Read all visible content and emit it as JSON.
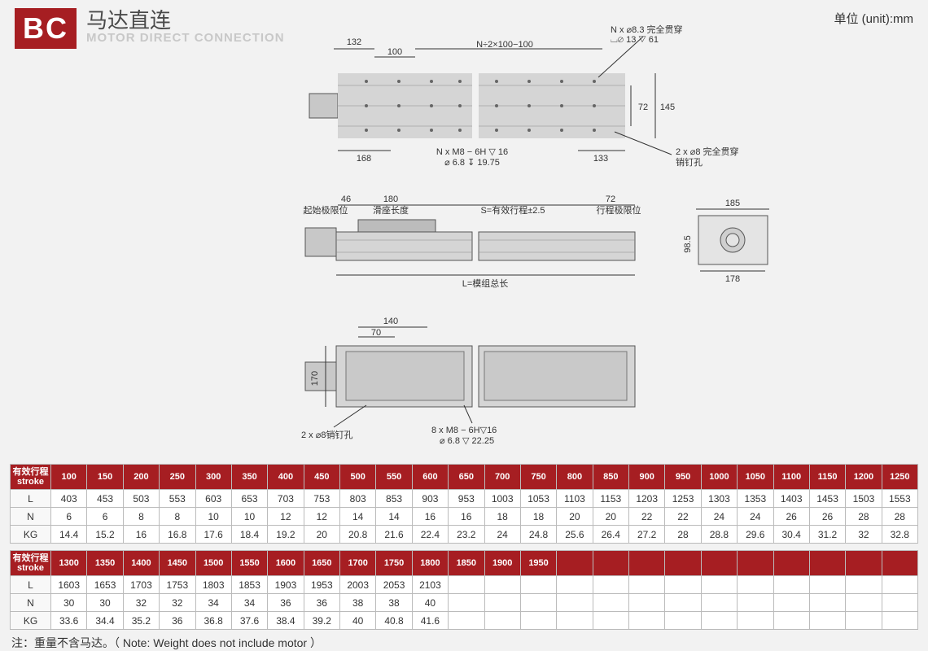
{
  "badge": "BC",
  "title_cn": "马达直连",
  "title_en": "MOTOR DIRECT CONNECTION",
  "unit_label": "单位 (unit):mm",
  "colors": {
    "brand_red": "#a61e22",
    "background": "#f2f2f2",
    "body_fill": "#d5d5d5",
    "line": "#333333",
    "grid": "#bbbbbb",
    "subtitle_grey": "#c8c8c8"
  },
  "fonts": {
    "title_cn_pt": 26,
    "title_en_pt": 15,
    "table_cell_pt": 12,
    "dim_pt": 11,
    "badge_pt": 36
  },
  "top_view": {
    "dims": {
      "d132": "132",
      "d100": "100",
      "formula": "N÷2×100−100",
      "d168": "168",
      "d133": "133",
      "d72": "72",
      "d145": "145",
      "note_top": "N x ⌀8.3 完全贯穿",
      "note_top2": "⌴⌀ 13 ▽ 61",
      "note_bottom": "N x M8 − 6H ▽ 16",
      "note_bottom2": "⌀ 6.8 ↧ 19.75",
      "note_right": "2 x ⌀8 完全贯穿",
      "note_right2": "销钉孔"
    }
  },
  "side_view": {
    "dims": {
      "d46": "46",
      "d180": "180",
      "d72": "72",
      "start_label": "起始极限位",
      "slide_label": "滑座长度",
      "stroke_label": "S=有效行程±2.5",
      "end_label": "行程极限位",
      "length_label": "L=模组总长"
    }
  },
  "end_view": {
    "dims": {
      "d185": "185",
      "d98_5": "98.5",
      "d178": "178"
    }
  },
  "bottom_view": {
    "dims": {
      "d140": "140",
      "d70": "70",
      "d170": "170",
      "note_left": "2 x ⌀8销钉孔",
      "note_right": "8 x M8 − 6H▽16",
      "note_right2": "⌀ 6.8 ▽ 22.25"
    }
  },
  "table1": {
    "row_header_label": "有效行程\nstroke",
    "strokes": [
      "100",
      "150",
      "200",
      "250",
      "300",
      "350",
      "400",
      "450",
      "500",
      "550",
      "600",
      "650",
      "700",
      "750",
      "800",
      "850",
      "900",
      "950",
      "1000",
      "1050",
      "1100",
      "1150",
      "1200",
      "1250"
    ],
    "rows": [
      {
        "label": "L",
        "values": [
          "403",
          "453",
          "503",
          "553",
          "603",
          "653",
          "703",
          "753",
          "803",
          "853",
          "903",
          "953",
          "1003",
          "1053",
          "1103",
          "1153",
          "1203",
          "1253",
          "1303",
          "1353",
          "1403",
          "1453",
          "1503",
          "1553"
        ]
      },
      {
        "label": "N",
        "values": [
          "6",
          "6",
          "8",
          "8",
          "10",
          "10",
          "12",
          "12",
          "14",
          "14",
          "16",
          "16",
          "18",
          "18",
          "20",
          "20",
          "22",
          "22",
          "24",
          "24",
          "26",
          "26",
          "28",
          "28"
        ]
      },
      {
        "label": "KG",
        "values": [
          "14.4",
          "15.2",
          "16",
          "16.8",
          "17.6",
          "18.4",
          "19.2",
          "20",
          "20.8",
          "21.6",
          "22.4",
          "23.2",
          "24",
          "24.8",
          "25.6",
          "26.4",
          "27.2",
          "28",
          "28.8",
          "29.6",
          "30.4",
          "31.2",
          "32",
          "32.8"
        ]
      }
    ]
  },
  "table2": {
    "row_header_label": "有效行程\nstroke",
    "strokes": [
      "1300",
      "1350",
      "1400",
      "1450",
      "1500",
      "1550",
      "1600",
      "1650",
      "1700",
      "1750",
      "1800",
      "1850",
      "1900",
      "1950",
      "",
      "",
      "",
      "",
      "",
      "",
      "",
      "",
      "",
      ""
    ],
    "rows": [
      {
        "label": "L",
        "values": [
          "1603",
          "1653",
          "1703",
          "1753",
          "1803",
          "1853",
          "1903",
          "1953",
          "2003",
          "2053",
          "2103",
          "",
          "",
          "",
          "",
          "",
          "",
          "",
          "",
          "",
          "",
          "",
          "",
          ""
        ]
      },
      {
        "label": "N",
        "values": [
          "30",
          "30",
          "32",
          "32",
          "34",
          "34",
          "36",
          "36",
          "38",
          "38",
          "40",
          "",
          "",
          "",
          "",
          "",
          "",
          "",
          "",
          "",
          "",
          "",
          "",
          ""
        ]
      },
      {
        "label": "KG",
        "values": [
          "33.6",
          "34.4",
          "35.2",
          "36",
          "36.8",
          "37.6",
          "38.4",
          "39.2",
          "40",
          "40.8",
          "41.6",
          "",
          "",
          "",
          "",
          "",
          "",
          "",
          "",
          "",
          "",
          "",
          "",
          ""
        ]
      }
    ]
  },
  "footnote": "注：重量不含马达。（ Note: Weight does not include motor ）"
}
